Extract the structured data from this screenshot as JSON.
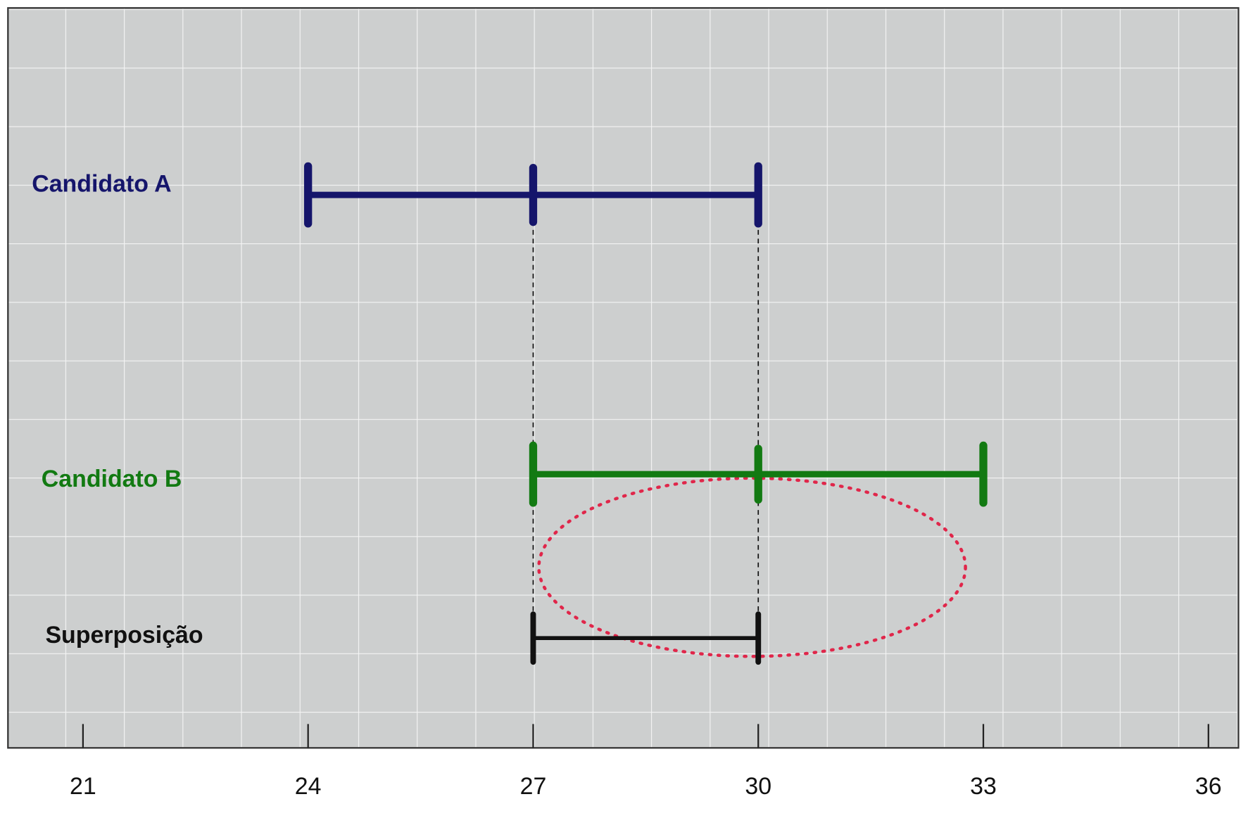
{
  "chart_data": {
    "type": "interval",
    "series": [
      {
        "name": "Candidato A",
        "color": "#15156b",
        "values": [
          24,
          27,
          30
        ]
      },
      {
        "name": "Candidato B",
        "color": "#127a12",
        "values": [
          27,
          30,
          33
        ]
      },
      {
        "name": "Superposição",
        "color": "#111111",
        "values": [
          27,
          30
        ]
      }
    ],
    "xlim": [
      20,
      36.4
    ],
    "xticks": [
      21,
      24,
      27,
      30,
      33,
      36
    ]
  }
}
